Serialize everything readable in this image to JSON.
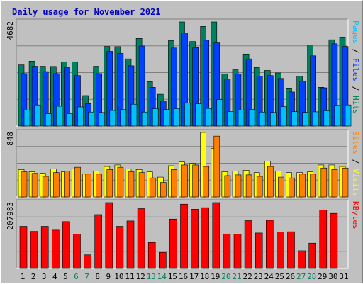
{
  "chart_data": {
    "type": "bar",
    "title": "Daily usage for November 2021",
    "days": [
      {
        "label": "1",
        "weekend": false
      },
      {
        "label": "2",
        "weekend": false
      },
      {
        "label": "3",
        "weekend": false
      },
      {
        "label": "4",
        "weekend": false
      },
      {
        "label": "5",
        "weekend": false
      },
      {
        "label": "6",
        "weekend": true
      },
      {
        "label": "7",
        "weekend": true
      },
      {
        "label": "8",
        "weekend": false
      },
      {
        "label": "9",
        "weekend": false
      },
      {
        "label": "10",
        "weekend": false
      },
      {
        "label": "11",
        "weekend": false
      },
      {
        "label": "12",
        "weekend": false
      },
      {
        "label": "13",
        "weekend": true
      },
      {
        "label": "14",
        "weekend": true
      },
      {
        "label": "15",
        "weekend": false
      },
      {
        "label": "16",
        "weekend": false
      },
      {
        "label": "17",
        "weekend": false
      },
      {
        "label": "18",
        "weekend": false
      },
      {
        "label": "19",
        "weekend": false
      },
      {
        "label": "20",
        "weekend": true
      },
      {
        "label": "21",
        "weekend": true
      },
      {
        "label": "22",
        "weekend": false
      },
      {
        "label": "23",
        "weekend": false
      },
      {
        "label": "24",
        "weekend": false
      },
      {
        "label": "25",
        "weekend": false
      },
      {
        "label": "26",
        "weekend": false
      },
      {
        "label": "27",
        "weekend": true
      },
      {
        "label": "28",
        "weekend": true
      },
      {
        "label": "29",
        "weekend": false
      },
      {
        "label": "30",
        "weekend": false
      },
      {
        "label": "31",
        "weekend": false
      }
    ],
    "panels": [
      {
        "id": "pages-files-hits",
        "ymax_label": "4682",
        "ymax": 4682,
        "legend": [
          {
            "text": "Pages",
            "color": "#00c0ff"
          },
          {
            "text": " / ",
            "color": "#000000"
          },
          {
            "text": "Files",
            "color": "#0040ff"
          },
          {
            "text": " / ",
            "color": "#000000"
          },
          {
            "text": "Hits",
            "color": "#00805c"
          }
        ],
        "series": [
          {
            "name": "Hits",
            "color": "#008060",
            "values": [
              2750,
              2920,
              2690,
              2680,
              2890,
              2890,
              1370,
              2690,
              3580,
              3570,
              3020,
              3940,
              2000,
              1430,
              3840,
              4682,
              3800,
              4480,
              4682,
              2350,
              2530,
              3240,
              2630,
              2500,
              2390,
              1710,
              2240,
              3640,
              1740,
              3880,
              4000
            ]
          },
          {
            "name": "Files",
            "color": "#0040ff",
            "values": [
              2360,
              2690,
              2450,
              2360,
              2640,
              2270,
              1010,
              2360,
              3360,
              3270,
              2710,
              3600,
              1740,
              1120,
              3510,
              4190,
              3530,
              3860,
              3740,
              2110,
              2350,
              3020,
              2250,
              2270,
              2140,
              1530,
              2030,
              3160,
              1720,
              3700,
              3580
            ]
          },
          {
            "name": "Pages",
            "color": "#00c0ff",
            "values": [
              720,
              950,
              560,
              890,
              560,
              860,
              630,
              610,
              700,
              740,
              980,
              630,
              780,
              740,
              780,
              1030,
              1000,
              790,
              1190,
              650,
              720,
              750,
              630,
              610,
              870,
              650,
              620,
              640,
              690,
              930,
              950
            ]
          }
        ]
      },
      {
        "id": "sites-visits",
        "ymax_label": "848",
        "ymax": 848,
        "legend": [
          {
            "text": "Sites",
            "color": "#ff8000"
          },
          {
            "text": " / ",
            "color": "#000000"
          },
          {
            "text": "Visits",
            "color": "#ffff00"
          }
        ],
        "series": [
          {
            "name": "Visits",
            "color": "#ffff00",
            "values": [
              360,
              330,
              310,
              370,
              330,
              370,
              300,
              340,
              400,
              420,
              370,
              360,
              330,
              260,
              410,
              460,
              440,
              848,
              640,
              330,
              340,
              350,
              320,
              470,
              340,
              320,
              320,
              330,
              420,
              420,
              400
            ]
          },
          {
            "name": "Sites",
            "color": "#ff8000",
            "values": [
              330,
              310,
              270,
              320,
              340,
              390,
              300,
              300,
              360,
              390,
              330,
              320,
              250,
              190,
              360,
              420,
              420,
              400,
              800,
              280,
              290,
              290,
              270,
              400,
              260,
              250,
              300,
              300,
              380,
              360,
              380
            ]
          }
        ]
      },
      {
        "id": "kbytes",
        "ymax_label": "207983",
        "ymax": 207983,
        "legend": [
          {
            "text": "KBytes",
            "color": "#ff0000"
          }
        ],
        "series": [
          {
            "name": "KBytes",
            "color": "#ff0000",
            "values": [
              133000,
              117000,
              133000,
              121000,
              148000,
              108000,
              43000,
              170000,
              207983,
              133000,
              150000,
              189000,
              82000,
              51000,
              156000,
              203000,
              187000,
              192000,
              207983,
              109000,
              108000,
              151000,
              112000,
              152000,
              115000,
              116000,
              56000,
              80000,
              185000,
              174000,
              0
            ]
          }
        ]
      }
    ]
  }
}
